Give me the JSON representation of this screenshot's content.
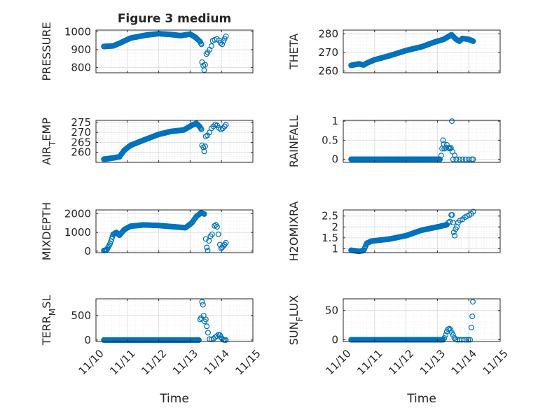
{
  "figure": {
    "title": "Figure 3 medium",
    "xlabel": "Time"
  },
  "chart_data": [
    {
      "type": "scatter",
      "id": "pressure",
      "title": "Figure 3 medium",
      "ylabel": "PRESSURE",
      "xlabel": "",
      "xlim": [
        0,
        5
      ],
      "ylim": [
        770,
        1010
      ],
      "yticks": [
        800,
        900,
        1000
      ],
      "yticklabels": [
        "800",
        "900",
        "1000"
      ],
      "xticks": [
        0,
        1,
        2,
        3,
        4,
        5
      ],
      "xticklabels": [],
      "knots": [
        [
          0.25,
          918
        ],
        [
          0.55,
          921
        ],
        [
          0.8,
          940
        ],
        [
          1.1,
          965
        ],
        [
          1.6,
          982
        ],
        [
          2.0,
          990
        ],
        [
          2.4,
          985
        ],
        [
          2.7,
          979
        ],
        [
          3.0,
          987
        ],
        [
          3.15,
          972
        ],
        [
          3.32,
          945
        ],
        [
          3.36,
          930
        ]
      ],
      "extras": [
        [
          3.38,
          830
        ],
        [
          3.42,
          810
        ],
        [
          3.45,
          785
        ],
        [
          3.48,
          815
        ],
        [
          3.52,
          875
        ],
        [
          3.56,
          885
        ],
        [
          3.62,
          900
        ],
        [
          3.68,
          920
        ],
        [
          3.72,
          950
        ],
        [
          3.78,
          955
        ],
        [
          3.85,
          960
        ],
        [
          3.92,
          952
        ],
        [
          3.97,
          938
        ],
        [
          4.02,
          930
        ],
        [
          4.06,
          948
        ],
        [
          4.1,
          962
        ],
        [
          4.14,
          975
        ]
      ],
      "step": 0.025
    },
    {
      "type": "scatter",
      "id": "theta",
      "title": "",
      "ylabel": "THETA",
      "xlabel": "",
      "xlim": [
        0,
        5
      ],
      "ylim": [
        259,
        282
      ],
      "yticks": [
        260,
        270,
        280
      ],
      "yticklabels": [
        "260",
        "270",
        "280"
      ],
      "xticks": [
        0,
        1,
        2,
        3,
        4,
        5
      ],
      "xticklabels": [],
      "knots": [
        [
          0.25,
          263
        ],
        [
          0.5,
          263.8
        ],
        [
          0.65,
          263.2
        ],
        [
          0.75,
          264.2
        ],
        [
          1.0,
          266
        ],
        [
          1.5,
          268.3
        ],
        [
          2.0,
          271
        ],
        [
          2.5,
          273
        ],
        [
          2.9,
          275.5
        ],
        [
          3.2,
          277
        ],
        [
          3.45,
          279.5
        ],
        [
          3.6,
          277
        ],
        [
          3.7,
          276
        ],
        [
          3.8,
          277.5
        ],
        [
          4.0,
          277
        ],
        [
          4.14,
          276
        ]
      ],
      "extras": [],
      "step": 0.02
    },
    {
      "type": "scatter",
      "id": "airtemp",
      "title": "",
      "ylabel": "AIR_TEMP",
      "xlabel": "",
      "xlim": [
        0,
        5
      ],
      "ylim": [
        255,
        276
      ],
      "yticks": [
        260,
        265,
        270,
        275
      ],
      "yticklabels": [
        "260",
        "265",
        "270",
        "275"
      ],
      "xticks": [
        0,
        1,
        2,
        3,
        4,
        5
      ],
      "xticklabels": [],
      "knots": [
        [
          0.25,
          256.6
        ],
        [
          0.55,
          257.2
        ],
        [
          0.75,
          257.8
        ],
        [
          0.9,
          261
        ],
        [
          1.1,
          263.5
        ],
        [
          1.5,
          266
        ],
        [
          2.0,
          269
        ],
        [
          2.4,
          270.5
        ],
        [
          2.8,
          271.2
        ],
        [
          3.05,
          273.5
        ],
        [
          3.2,
          274.5
        ],
        [
          3.3,
          273
        ],
        [
          3.36,
          271.5
        ]
      ],
      "extras": [
        [
          3.38,
          263.5
        ],
        [
          3.42,
          262.5
        ],
        [
          3.45,
          260.5
        ],
        [
          3.48,
          263
        ],
        [
          3.5,
          268
        ],
        [
          3.55,
          268.5
        ],
        [
          3.62,
          270
        ],
        [
          3.68,
          272
        ],
        [
          3.74,
          273
        ],
        [
          3.8,
          274
        ],
        [
          3.86,
          273.5
        ],
        [
          3.92,
          272.2
        ],
        [
          3.98,
          271.5
        ],
        [
          4.04,
          272
        ],
        [
          4.1,
          273
        ],
        [
          4.14,
          273.8
        ]
      ],
      "step": 0.02
    },
    {
      "type": "scatter",
      "id": "rainfall",
      "title": "",
      "ylabel": "RAINFALL",
      "xlabel": "",
      "xlim": [
        0,
        5
      ],
      "ylim": [
        -0.08,
        1.02
      ],
      "yticks": [
        0,
        0.5,
        1
      ],
      "yticklabels": [
        "0",
        "0.5",
        "1"
      ],
      "xticks": [
        0,
        1,
        2,
        3,
        4,
        5
      ],
      "xticklabels": [],
      "knots": [
        [
          0.25,
          0
        ],
        [
          3.08,
          0
        ]
      ],
      "extras": [
        [
          3.12,
          0.1
        ],
        [
          3.15,
          0.28
        ],
        [
          3.18,
          0.5
        ],
        [
          3.2,
          0.4
        ],
        [
          3.22,
          0.28
        ],
        [
          3.27,
          0.3
        ],
        [
          3.3,
          0.38
        ],
        [
          3.33,
          0.3
        ],
        [
          3.37,
          0.3
        ],
        [
          3.4,
          0.28
        ],
        [
          3.43,
          0.3
        ],
        [
          3.46,
          1.0
        ],
        [
          3.48,
          0.2
        ],
        [
          3.5,
          0
        ],
        [
          3.55,
          0.1
        ],
        [
          3.6,
          0
        ],
        [
          3.7,
          0
        ],
        [
          3.8,
          0
        ],
        [
          3.9,
          0
        ],
        [
          4.0,
          0
        ],
        [
          4.1,
          0
        ],
        [
          4.14,
          0
        ]
      ],
      "step": 0.02
    },
    {
      "type": "scatter",
      "id": "mixdepth",
      "title": "",
      "ylabel": "MIXDEPTH",
      "xlabel": "",
      "xlim": [
        0,
        5
      ],
      "ylim": [
        -80,
        2200
      ],
      "yticks": [
        0,
        1000,
        2000
      ],
      "yticklabels": [
        "0",
        "1000",
        "2000"
      ],
      "xticks": [
        0,
        1,
        2,
        3,
        4,
        5
      ],
      "xticklabels": [],
      "knots": [
        [
          0.25,
          30
        ],
        [
          0.35,
          80
        ],
        [
          0.45,
          400
        ],
        [
          0.55,
          900
        ],
        [
          0.65,
          1000
        ],
        [
          0.75,
          850
        ],
        [
          0.9,
          1150
        ],
        [
          1.1,
          1330
        ],
        [
          1.5,
          1400
        ],
        [
          2.0,
          1370
        ],
        [
          2.5,
          1300
        ],
        [
          2.85,
          1250
        ],
        [
          3.05,
          1500
        ],
        [
          3.2,
          1850
        ],
        [
          3.35,
          2050
        ],
        [
          3.45,
          1980
        ]
      ],
      "extras": [
        [
          3.5,
          650
        ],
        [
          3.53,
          200
        ],
        [
          3.56,
          30
        ],
        [
          3.6,
          550
        ],
        [
          3.65,
          800
        ],
        [
          3.7,
          900
        ],
        [
          3.78,
          1350
        ],
        [
          3.82,
          1400
        ],
        [
          3.86,
          1300
        ],
        [
          3.9,
          900
        ],
        [
          3.95,
          350
        ],
        [
          3.99,
          150
        ],
        [
          4.02,
          200
        ],
        [
          4.06,
          280
        ],
        [
          4.1,
          350
        ],
        [
          4.14,
          450
        ]
      ],
      "step": 0.025
    },
    {
      "type": "scatter",
      "id": "h2omixra",
      "title": "",
      "ylabel": "H2OMIXRA",
      "xlabel": "",
      "xlim": [
        0,
        5
      ],
      "ylim": [
        0.82,
        2.78
      ],
      "yticks": [
        1,
        1.5,
        2,
        2.5
      ],
      "yticklabels": [
        "1",
        "1.5",
        "2",
        "2.5"
      ],
      "xticks": [
        0,
        1,
        2,
        3,
        4,
        5
      ],
      "xticklabels": [],
      "knots": [
        [
          0.25,
          0.93
        ],
        [
          0.5,
          0.88
        ],
        [
          0.65,
          0.92
        ],
        [
          0.75,
          1.25
        ],
        [
          0.9,
          1.35
        ],
        [
          1.5,
          1.45
        ],
        [
          2.0,
          1.6
        ],
        [
          2.5,
          1.85
        ],
        [
          3.0,
          2.0
        ],
        [
          3.3,
          2.1
        ]
      ],
      "extras": [
        [
          3.35,
          2.2
        ],
        [
          3.4,
          2.25
        ],
        [
          3.44,
          2.55
        ],
        [
          3.47,
          2.55
        ],
        [
          3.5,
          2.2
        ],
        [
          3.52,
          1.75
        ],
        [
          3.55,
          1.6
        ],
        [
          3.58,
          1.9
        ],
        [
          3.62,
          2.0
        ],
        [
          3.66,
          2.2
        ],
        [
          3.72,
          2.3
        ],
        [
          3.8,
          2.35
        ],
        [
          3.88,
          2.45
        ],
        [
          3.95,
          2.5
        ],
        [
          4.02,
          2.55
        ],
        [
          4.08,
          2.6
        ],
        [
          4.14,
          2.7
        ]
      ],
      "step": 0.022
    },
    {
      "type": "scatter",
      "id": "terrmsl",
      "title": "",
      "ylabel": "TERR_MSL",
      "xlabel": "Time",
      "xlim": [
        0,
        5
      ],
      "ylim": [
        -30,
        840
      ],
      "yticks": [
        0,
        500
      ],
      "yticklabels": [
        "0",
        "500"
      ],
      "xticks": [
        0,
        1,
        2,
        3,
        4,
        5
      ],
      "xticklabels": [
        "11/10",
        "11/11",
        "11/12",
        "11/13",
        "11/14",
        "11/15"
      ],
      "knots": [
        [
          0.25,
          0
        ],
        [
          3.28,
          0
        ]
      ],
      "extras": [
        [
          3.32,
          420
        ],
        [
          3.35,
          450
        ],
        [
          3.38,
          780
        ],
        [
          3.41,
          720
        ],
        [
          3.43,
          500
        ],
        [
          3.46,
          380
        ],
        [
          3.5,
          420
        ],
        [
          3.53,
          280
        ],
        [
          3.57,
          150
        ],
        [
          3.62,
          20
        ],
        [
          3.68,
          10
        ],
        [
          3.75,
          30
        ],
        [
          3.8,
          60
        ],
        [
          3.85,
          80
        ],
        [
          3.9,
          110
        ],
        [
          3.95,
          100
        ],
        [
          3.98,
          60
        ],
        [
          4.02,
          30
        ],
        [
          4.06,
          5
        ],
        [
          4.1,
          0
        ],
        [
          4.14,
          0
        ]
      ],
      "step": 0.02
    },
    {
      "type": "scatter",
      "id": "sunflux",
      "title": "",
      "ylabel": "SUN_FLUX",
      "xlabel": "Time",
      "xlim": [
        0,
        5
      ],
      "ylim": [
        -3,
        70
      ],
      "yticks": [
        0,
        50
      ],
      "yticklabels": [
        "0",
        "50"
      ],
      "xticks": [
        0,
        1,
        2,
        3,
        4,
        5
      ],
      "xticklabels": [
        "11/10",
        "11/11",
        "11/12",
        "11/13",
        "11/14",
        "11/15"
      ],
      "knots": [
        [
          0.25,
          0
        ],
        [
          3.18,
          0
        ]
      ],
      "extras": [
        [
          3.22,
          3
        ],
        [
          3.26,
          8
        ],
        [
          3.3,
          14
        ],
        [
          3.34,
          18
        ],
        [
          3.38,
          19
        ],
        [
          3.42,
          17
        ],
        [
          3.46,
          12
        ],
        [
          3.5,
          8
        ],
        [
          3.54,
          3
        ],
        [
          3.58,
          1
        ],
        [
          3.63,
          0
        ],
        [
          3.7,
          0
        ],
        [
          3.78,
          0
        ],
        [
          3.86,
          0
        ],
        [
          3.92,
          0
        ],
        [
          3.98,
          0
        ],
        [
          4.04,
          0
        ],
        [
          4.08,
          21
        ],
        [
          4.11,
          40
        ],
        [
          4.13,
          65
        ]
      ],
      "step": 0.02
    }
  ],
  "colors": {
    "marker": "#0072bd",
    "grid_major": "#dfdfdf",
    "grid_minor": "#efefef",
    "axis": "#262626"
  }
}
